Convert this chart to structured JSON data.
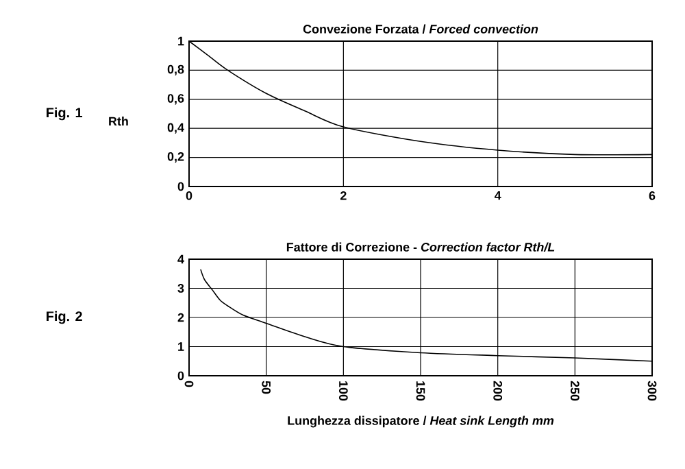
{
  "chart_data": [
    {
      "type": "line",
      "title": "Convezione Forzata / *Forced convection*",
      "ylabel": "Rth",
      "annotations": [
        "Fig. 1"
      ],
      "x": [
        0,
        0.25,
        0.5,
        1,
        1.5,
        2,
        3,
        4,
        5,
        6
      ],
      "values": [
        1.0,
        0.9,
        0.8,
        0.64,
        0.52,
        0.41,
        0.31,
        0.25,
        0.22,
        0.22
      ],
      "color": "#000000",
      "marker": "none",
      "line_style": "solid",
      "grid": true,
      "xlim": [
        0,
        6
      ],
      "ylim": [
        0,
        1
      ],
      "xticks": [
        0,
        2,
        4,
        6
      ],
      "yticks": [
        0,
        {
          "value": 0.2,
          "label": "0,2"
        },
        {
          "value": 0.4,
          "label": "0,4"
        },
        {
          "value": 0.6,
          "label": "0,6"
        },
        {
          "value": 0.8,
          "label": "0,8"
        },
        1
      ]
    },
    {
      "type": "line",
      "title": "Fattore di Correzione - *Correction factor Rth/L*",
      "xlabel": "Lunghezza dissipatore / *Heat sink Length mm*",
      "annotations": [
        "Fig. 2"
      ],
      "x": [
        7.5,
        10,
        15,
        20,
        25,
        35,
        50,
        75,
        100,
        150,
        200,
        250,
        300
      ],
      "values": [
        3.65,
        3.3,
        2.95,
        2.6,
        2.4,
        2.08,
        1.8,
        1.34,
        1.0,
        0.79,
        0.69,
        0.61,
        0.5
      ],
      "color": "#000000",
      "marker": "none",
      "line_style": "solid",
      "grid": true,
      "xlim": [
        0,
        300
      ],
      "ylim": [
        0,
        4
      ],
      "xticks": [
        0,
        50,
        100,
        150,
        200,
        250,
        300
      ],
      "yticks": [
        0,
        1,
        2,
        3,
        4
      ]
    }
  ]
}
